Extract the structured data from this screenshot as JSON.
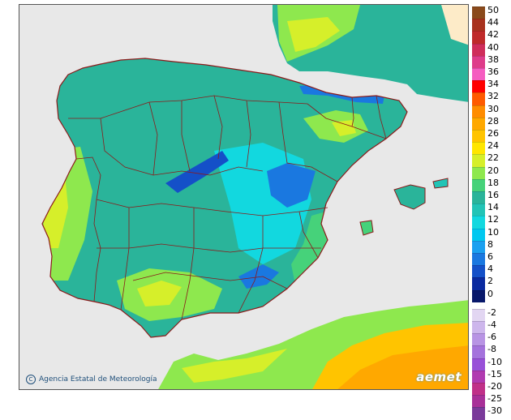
{
  "credit": "Agencia Estatal de Meteorología",
  "brand": "aemet",
  "map": {
    "sea_color": "#e8e8e8",
    "border_color": "#8b1a1a",
    "france_color": "#fdebc8"
  },
  "legend": {
    "positive": [
      {
        "label": "50",
        "color": "#8a4a1c"
      },
      {
        "label": "44",
        "color": "#a8321e"
      },
      {
        "label": "42",
        "color": "#bf2a2a"
      },
      {
        "label": "40",
        "color": "#cf2d5a"
      },
      {
        "label": "38",
        "color": "#de3c8a"
      },
      {
        "label": "36",
        "color": "#f55cc0"
      },
      {
        "label": "34",
        "color": "#ff0000"
      },
      {
        "label": "32",
        "color": "#ff5a00"
      },
      {
        "label": "30",
        "color": "#ff8c00"
      },
      {
        "label": "28",
        "color": "#ffa800"
      },
      {
        "label": "26",
        "color": "#ffc400"
      },
      {
        "label": "24",
        "color": "#ffe600"
      },
      {
        "label": "22",
        "color": "#d6ef2a"
      },
      {
        "label": "20",
        "color": "#8ee84e"
      },
      {
        "label": "18",
        "color": "#46d27a"
      },
      {
        "label": "16",
        "color": "#2ab49a"
      },
      {
        "label": "14",
        "color": "#22c4b6"
      },
      {
        "label": "12",
        "color": "#12d8df"
      },
      {
        "label": "10",
        "color": "#00c8f0"
      },
      {
        "label": "8",
        "color": "#1aa0f0"
      },
      {
        "label": "6",
        "color": "#1a78e0"
      },
      {
        "label": "4",
        "color": "#1450c8"
      },
      {
        "label": "2",
        "color": "#0a2aa0"
      },
      {
        "label": "0",
        "color": "#08186a"
      }
    ],
    "negative": [
      {
        "label": "-2",
        "color": "#e2d6f2"
      },
      {
        "label": "-4",
        "color": "#cdb6ec"
      },
      {
        "label": "-6",
        "color": "#b894e4"
      },
      {
        "label": "-8",
        "color": "#a472dc"
      },
      {
        "label": "-10",
        "color": "#9850d8"
      },
      {
        "label": "-15",
        "color": "#b03ab0"
      },
      {
        "label": "-20",
        "color": "#c03088"
      },
      {
        "label": "-25",
        "color": "#a83098"
      },
      {
        "label": "-30",
        "color": "#7a3a9a"
      }
    ]
  }
}
